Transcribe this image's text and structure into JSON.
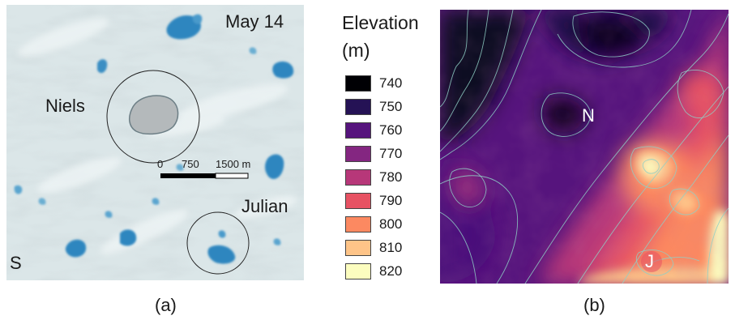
{
  "panel_a": {
    "date": "May 14",
    "lake_label_niels": "Niels",
    "lake_label_julian": "Julian",
    "orientation_letter": "S",
    "scalebar": {
      "tick_0": "0",
      "tick_1": "750",
      "tick_2": "1500 m"
    }
  },
  "legend": {
    "title_line1": "Elevation",
    "title_line2": "(m)",
    "items": [
      {
        "label": "740",
        "color": "#000004"
      },
      {
        "label": "750",
        "color": "#251255"
      },
      {
        "label": "760",
        "color": "#56147d"
      },
      {
        "label": "770",
        "color": "#842681"
      },
      {
        "label": "780",
        "color": "#b73779"
      },
      {
        "label": "790",
        "color": "#e75263"
      },
      {
        "label": "800",
        "color": "#fc8961"
      },
      {
        "label": "810",
        "color": "#fec488"
      },
      {
        "label": "820",
        "color": "#fcfdbf"
      }
    ]
  },
  "panel_b": {
    "marker_n": "N",
    "marker_j": "J"
  },
  "captions": {
    "a": "(a)",
    "b": "(b)"
  },
  "colors": {
    "ice": "#dfe9ea",
    "meltwater_lake": "#2f86bf",
    "drained_lake_bed": "#b4b9bb",
    "contour_line": "#8fd0c6"
  }
}
